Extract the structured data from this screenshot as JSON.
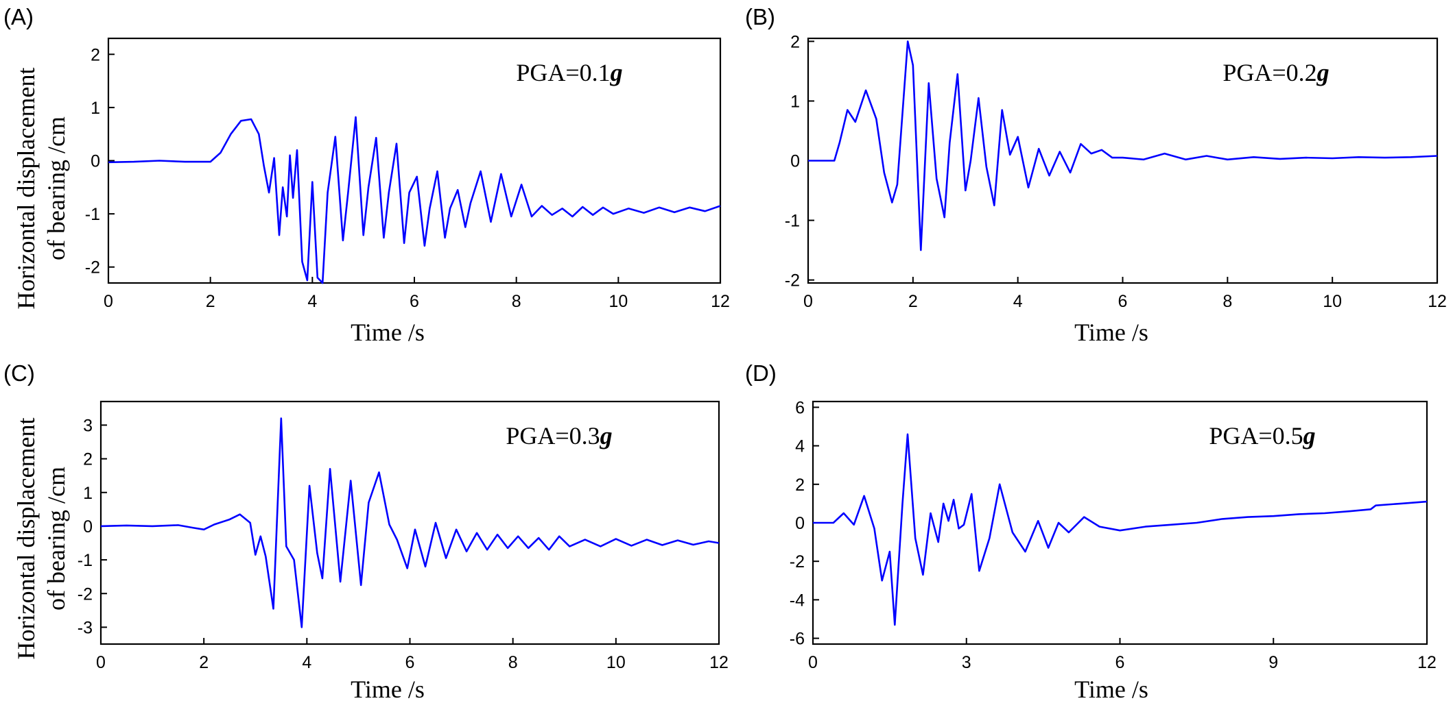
{
  "colors": {
    "line": "#0000ff",
    "axis": "#000000"
  },
  "chart_data": [
    {
      "panel": "(A)",
      "type": "line",
      "annotation": {
        "text": "PGA=0.1",
        "g": "g"
      },
      "xlabel": "Time /s",
      "ylabel": [
        "Horizontal displacement",
        "of bearing /cm"
      ],
      "xlim": [
        0,
        12
      ],
      "ylim": [
        -2.3,
        2.3
      ],
      "xticks": [
        0,
        2,
        4,
        6,
        8,
        10,
        12
      ],
      "yticks": [
        -2,
        -1,
        0,
        1,
        2
      ],
      "series": [
        {
          "x": [
            0,
            0.5,
            1.0,
            1.5,
            2.0,
            2.2,
            2.4,
            2.6,
            2.8,
            2.95,
            3.05,
            3.15,
            3.25,
            3.35,
            3.42,
            3.5,
            3.56,
            3.62,
            3.7,
            3.8,
            3.9,
            4.0,
            4.1,
            4.2,
            4.3,
            4.45,
            4.6,
            4.7,
            4.85,
            5.0,
            5.1,
            5.25,
            5.4,
            5.5,
            5.65,
            5.8,
            5.9,
            6.05,
            6.2,
            6.3,
            6.45,
            6.6,
            6.7,
            6.85,
            7.0,
            7.1,
            7.3,
            7.5,
            7.7,
            7.9,
            8.1,
            8.3,
            8.5,
            8.7,
            8.9,
            9.1,
            9.3,
            9.5,
            9.7,
            9.9,
            10.2,
            10.5,
            10.8,
            11.1,
            11.4,
            11.7,
            12.0
          ],
          "y": [
            -0.03,
            -0.02,
            0.0,
            -0.02,
            -0.02,
            0.15,
            0.5,
            0.75,
            0.78,
            0.5,
            -0.1,
            -0.6,
            0.05,
            -1.4,
            -0.5,
            -1.05,
            0.1,
            -0.7,
            0.2,
            -1.9,
            -2.25,
            -0.4,
            -2.2,
            -2.3,
            -0.6,
            0.45,
            -1.5,
            -0.6,
            0.82,
            -1.4,
            -0.5,
            0.43,
            -1.45,
            -0.6,
            0.32,
            -1.55,
            -0.6,
            -0.3,
            -1.6,
            -0.9,
            -0.2,
            -1.45,
            -0.9,
            -0.55,
            -1.25,
            -0.8,
            -0.2,
            -1.15,
            -0.25,
            -1.05,
            -0.45,
            -1.05,
            -0.85,
            -1.02,
            -0.9,
            -1.05,
            -0.87,
            -1.02,
            -0.88,
            -1.0,
            -0.9,
            -0.98,
            -0.88,
            -0.97,
            -0.88,
            -0.95,
            -0.85
          ]
        }
      ]
    },
    {
      "panel": "(B)",
      "type": "line",
      "annotation": {
        "text": "PGA=0.2",
        "g": "g"
      },
      "xlabel": "Time /s",
      "ylabel": null,
      "xlim": [
        0,
        12
      ],
      "ylim": [
        -2.05,
        2.05
      ],
      "xticks": [
        0,
        2,
        4,
        6,
        8,
        10,
        12
      ],
      "yticks": [
        -2,
        -1,
        0,
        1,
        2
      ],
      "series": [
        {
          "x": [
            0,
            0.5,
            0.6,
            0.75,
            0.9,
            1.1,
            1.3,
            1.45,
            1.6,
            1.7,
            1.9,
            2.0,
            2.15,
            2.3,
            2.45,
            2.6,
            2.7,
            2.85,
            3.0,
            3.1,
            3.25,
            3.4,
            3.55,
            3.7,
            3.85,
            4.0,
            4.2,
            4.4,
            4.6,
            4.8,
            5.0,
            5.2,
            5.4,
            5.6,
            5.8,
            6.0,
            6.4,
            6.8,
            7.2,
            7.6,
            8.0,
            8.5,
            9.0,
            9.5,
            10.0,
            10.5,
            11.0,
            11.5,
            12.0
          ],
          "y": [
            0,
            0,
            0.3,
            0.85,
            0.65,
            1.18,
            0.7,
            -0.2,
            -0.7,
            -0.4,
            2.0,
            1.6,
            -1.5,
            1.3,
            -0.3,
            -0.95,
            0.3,
            1.45,
            -0.5,
            0.0,
            1.05,
            -0.1,
            -0.75,
            0.85,
            0.1,
            0.4,
            -0.45,
            0.2,
            -0.25,
            0.15,
            -0.2,
            0.28,
            0.12,
            0.18,
            0.05,
            0.05,
            0.02,
            0.12,
            0.02,
            0.08,
            0.02,
            0.06,
            0.03,
            0.05,
            0.04,
            0.06,
            0.05,
            0.06,
            0.08
          ]
        }
      ]
    },
    {
      "panel": "(C)",
      "type": "line",
      "annotation": {
        "text": "PGA=0.3",
        "g": "g"
      },
      "xlabel": "Time /s",
      "ylabel": [
        "Horizontal displacement",
        "of bearing /cm"
      ],
      "xlim": [
        0,
        12
      ],
      "ylim": [
        -3.5,
        3.7
      ],
      "xticks": [
        0,
        2,
        4,
        6,
        8,
        10,
        12
      ],
      "yticks": [
        -3,
        -2,
        -1,
        0,
        1,
        2,
        3
      ],
      "series": [
        {
          "x": [
            0,
            0.5,
            1.0,
            1.5,
            1.8,
            2.0,
            2.2,
            2.5,
            2.7,
            2.9,
            3.0,
            3.1,
            3.2,
            3.35,
            3.5,
            3.6,
            3.75,
            3.9,
            4.05,
            4.2,
            4.3,
            4.45,
            4.65,
            4.85,
            5.05,
            5.2,
            5.4,
            5.6,
            5.75,
            5.95,
            6.1,
            6.3,
            6.5,
            6.7,
            6.9,
            7.1,
            7.3,
            7.5,
            7.7,
            7.9,
            8.1,
            8.3,
            8.5,
            8.7,
            8.9,
            9.1,
            9.4,
            9.7,
            10.0,
            10.3,
            10.6,
            10.9,
            11.2,
            11.5,
            11.8,
            12.0
          ],
          "y": [
            0,
            0.02,
            0,
            0.03,
            -0.05,
            -0.1,
            0.05,
            0.2,
            0.35,
            0.1,
            -0.85,
            -0.3,
            -0.9,
            -2.45,
            3.2,
            -0.6,
            -1.0,
            -3.0,
            1.2,
            -0.8,
            -1.55,
            1.7,
            -1.65,
            1.35,
            -1.75,
            0.7,
            1.6,
            0.05,
            -0.4,
            -1.25,
            -0.1,
            -1.2,
            0.1,
            -0.95,
            -0.1,
            -0.75,
            -0.2,
            -0.7,
            -0.25,
            -0.65,
            -0.3,
            -0.65,
            -0.35,
            -0.7,
            -0.3,
            -0.6,
            -0.4,
            -0.6,
            -0.38,
            -0.58,
            -0.4,
            -0.56,
            -0.42,
            -0.55,
            -0.45,
            -0.5
          ]
        }
      ]
    },
    {
      "panel": "(D)",
      "type": "line",
      "annotation": {
        "text": "PGA=0.5",
        "g": "g"
      },
      "xlabel": "Time /s",
      "ylabel": null,
      "xlim": [
        0,
        12
      ],
      "ylim": [
        -6.3,
        6.3
      ],
      "xticks": [
        0,
        3,
        6,
        9,
        12
      ],
      "yticks": [
        -6,
        -4,
        -2,
        0,
        2,
        4,
        6
      ],
      "series": [
        {
          "x": [
            0,
            0.4,
            0.6,
            0.8,
            1.0,
            1.2,
            1.35,
            1.5,
            1.6,
            1.75,
            1.85,
            2.0,
            2.15,
            2.3,
            2.45,
            2.55,
            2.65,
            2.75,
            2.85,
            2.95,
            3.1,
            3.25,
            3.45,
            3.65,
            3.9,
            4.15,
            4.4,
            4.6,
            4.8,
            5.0,
            5.3,
            5.6,
            6.0,
            6.5,
            7.0,
            7.5,
            8.0,
            8.5,
            9.0,
            9.5,
            10.0,
            10.5,
            10.9,
            11.0,
            11.5,
            12.0
          ],
          "y": [
            0,
            0,
            0.5,
            -0.1,
            1.4,
            -0.3,
            -3.0,
            -1.5,
            -5.3,
            1.0,
            4.6,
            -0.8,
            -2.7,
            0.5,
            -1.0,
            1.0,
            0.1,
            1.2,
            -0.3,
            -0.1,
            1.5,
            -2.5,
            -0.8,
            2.0,
            -0.5,
            -1.5,
            0.1,
            -1.3,
            0.0,
            -0.5,
            0.3,
            -0.2,
            -0.4,
            -0.2,
            -0.1,
            0.0,
            0.2,
            0.3,
            0.35,
            0.45,
            0.5,
            0.6,
            0.7,
            0.9,
            1.0,
            1.1
          ]
        }
      ]
    }
  ]
}
